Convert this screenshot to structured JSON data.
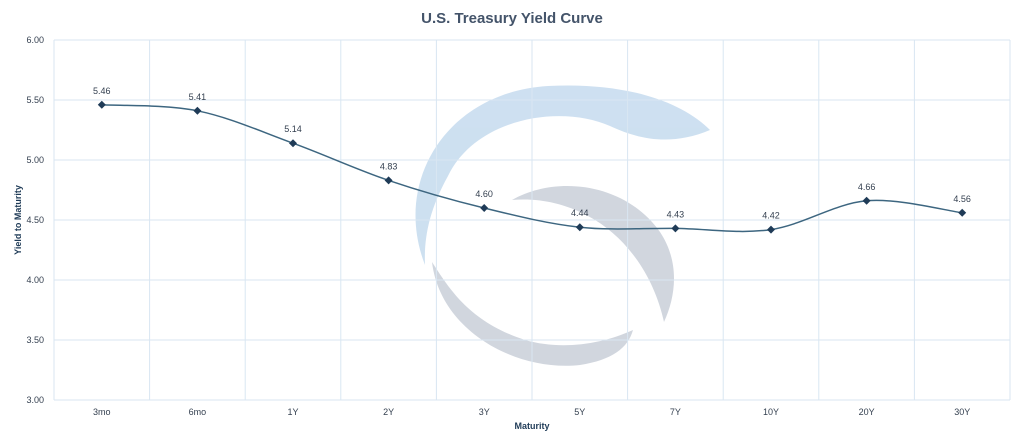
{
  "chart_data": {
    "type": "line",
    "title": "U.S. Treasury Yield Curve",
    "xlabel": "Maturity",
    "ylabel": "Yield to Maturity",
    "categories": [
      "3mo",
      "6mo",
      "1Y",
      "2Y",
      "3Y",
      "5Y",
      "7Y",
      "10Y",
      "20Y",
      "30Y"
    ],
    "series": [
      {
        "values": [
          5.46,
          5.41,
          5.14,
          4.83,
          4.6,
          4.44,
          4.43,
          4.42,
          4.66,
          4.56
        ],
        "data_labels": [
          "5.46",
          "5.41",
          "5.14",
          "4.83",
          "4.60",
          "4.44",
          "4.43",
          "4.42",
          "4.66",
          "4.56"
        ]
      }
    ],
    "ylim": [
      3.0,
      6.0
    ],
    "yticks": [
      "3.00",
      "3.50",
      "4.00",
      "4.50",
      "5.00",
      "5.50",
      "6.00"
    ],
    "grid": true,
    "smooth": true,
    "marker": "diamond",
    "line_color": "#3d6680",
    "marker_color": "#1f3b57",
    "watermark_colors": [
      "#c5dbee",
      "#c9cfd9"
    ]
  }
}
